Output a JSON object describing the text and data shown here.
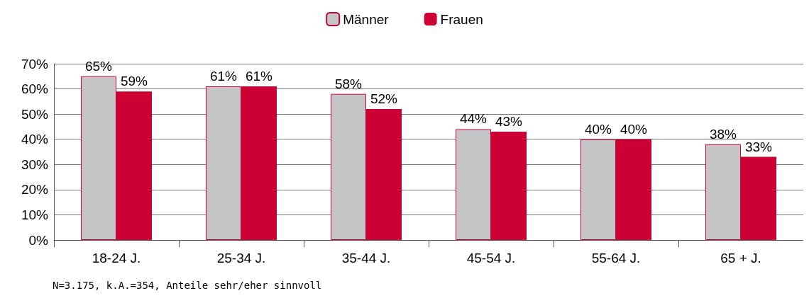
{
  "chart_data": {
    "type": "bar",
    "categories": [
      "18-24 J.",
      "25-34 J.",
      "35-44 J.",
      "45-54 J.",
      "55-64 J.",
      "65 + J."
    ],
    "series": [
      {
        "name": "Männer",
        "color": "#c4c5c7",
        "values": [
          65,
          61,
          58,
          44,
          40,
          38
        ],
        "value_labels": [
          "65%",
          "61%",
          "58%",
          "44%",
          "40%",
          "38%"
        ]
      },
      {
        "name": "Frauen",
        "color": "#cc0033",
        "values": [
          59,
          61,
          52,
          43,
          40,
          33
        ],
        "value_labels": [
          "59%",
          "61%",
          "52%",
          "43%",
          "40%",
          "33%"
        ]
      }
    ],
    "ylim": [
      0,
      70
    ],
    "yticks": [
      {
        "value": 0,
        "label": "0%"
      },
      {
        "value": 10,
        "label": "10%"
      },
      {
        "value": 20,
        "label": "20%"
      },
      {
        "value": 30,
        "label": "30%"
      },
      {
        "value": 40,
        "label": "40%"
      },
      {
        "value": 50,
        "label": "50%"
      },
      {
        "value": 60,
        "label": "60%"
      },
      {
        "value": 70,
        "label": "70%"
      }
    ],
    "grid": "y",
    "legend": "top",
    "annotations": [
      "N=3.175, k.A.=354, Anteile sehr/eher sinnvoll"
    ]
  }
}
